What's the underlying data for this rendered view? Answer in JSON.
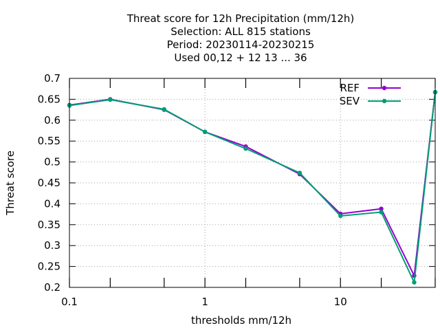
{
  "chart_data": {
    "type": "line",
    "title_lines": [
      "Threat score  for 12h Precipitation (mm/12h)",
      "Selection: ALL    815 stations",
      "Period: 20230114-20230215",
      "Used  00,12  + 12 13 ... 36"
    ],
    "xlabel": "thresholds mm/12h",
    "ylabel": "Threat score",
    "x_scale": "log",
    "xlim": [
      0.1,
      50
    ],
    "ylim": [
      0.2,
      0.7
    ],
    "x_ticks": [
      {
        "value": 0.1,
        "label": "0.1"
      },
      {
        "value": 1,
        "label": "1"
      },
      {
        "value": 10,
        "label": "10"
      }
    ],
    "x_minor_ticks": [
      0.2,
      0.5,
      2,
      5,
      20,
      50
    ],
    "y_ticks": [
      {
        "value": 0.2,
        "label": "0.2"
      },
      {
        "value": 0.25,
        "label": "0.25"
      },
      {
        "value": 0.3,
        "label": "0.3"
      },
      {
        "value": 0.35,
        "label": "0.35"
      },
      {
        "value": 0.4,
        "label": "0.4"
      },
      {
        "value": 0.45,
        "label": "0.45"
      },
      {
        "value": 0.5,
        "label": "0.5"
      },
      {
        "value": 0.55,
        "label": "0.55"
      },
      {
        "value": 0.6,
        "label": "0.6"
      },
      {
        "value": 0.65,
        "label": "0.65"
      },
      {
        "value": 0.7,
        "label": "0.7"
      }
    ],
    "grid": true,
    "legend_position": "top-right",
    "x": [
      0.1,
      0.2,
      0.5,
      1,
      2,
      5,
      10,
      20,
      35,
      50
    ],
    "series": [
      {
        "name": "REF",
        "color": "#9400d3",
        "values": [
          0.636,
          0.65,
          0.625,
          0.572,
          0.537,
          0.471,
          0.376,
          0.388,
          0.228,
          0.667
        ]
      },
      {
        "name": "SEV",
        "color": "#009e73",
        "values": [
          0.635,
          0.649,
          0.626,
          0.572,
          0.532,
          0.474,
          0.371,
          0.38,
          0.212,
          0.667
        ]
      }
    ]
  }
}
